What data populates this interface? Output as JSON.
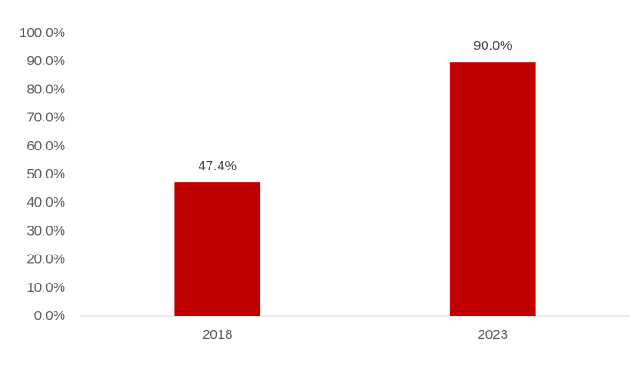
{
  "chart_data": {
    "type": "bar",
    "categories": [
      "2018",
      "2023"
    ],
    "values": [
      47.4,
      90.0
    ],
    "value_labels": [
      "47.4%",
      "90.0%"
    ],
    "color": "#c00000",
    "ylim": [
      0,
      100
    ],
    "yticks": [
      {
        "value": 0,
        "label": "0.0%"
      },
      {
        "value": 10,
        "label": "10.0%"
      },
      {
        "value": 20,
        "label": "20.0%"
      },
      {
        "value": 30,
        "label": "30.0%"
      },
      {
        "value": 40,
        "label": "40.0%"
      },
      {
        "value": 50,
        "label": "50.0%"
      },
      {
        "value": 60,
        "label": "60.0%"
      },
      {
        "value": 70,
        "label": "70.0%"
      },
      {
        "value": 80,
        "label": "80.0%"
      },
      {
        "value": 90,
        "label": "90.0%"
      },
      {
        "value": 100,
        "label": "100.0%"
      }
    ],
    "grid": false
  }
}
